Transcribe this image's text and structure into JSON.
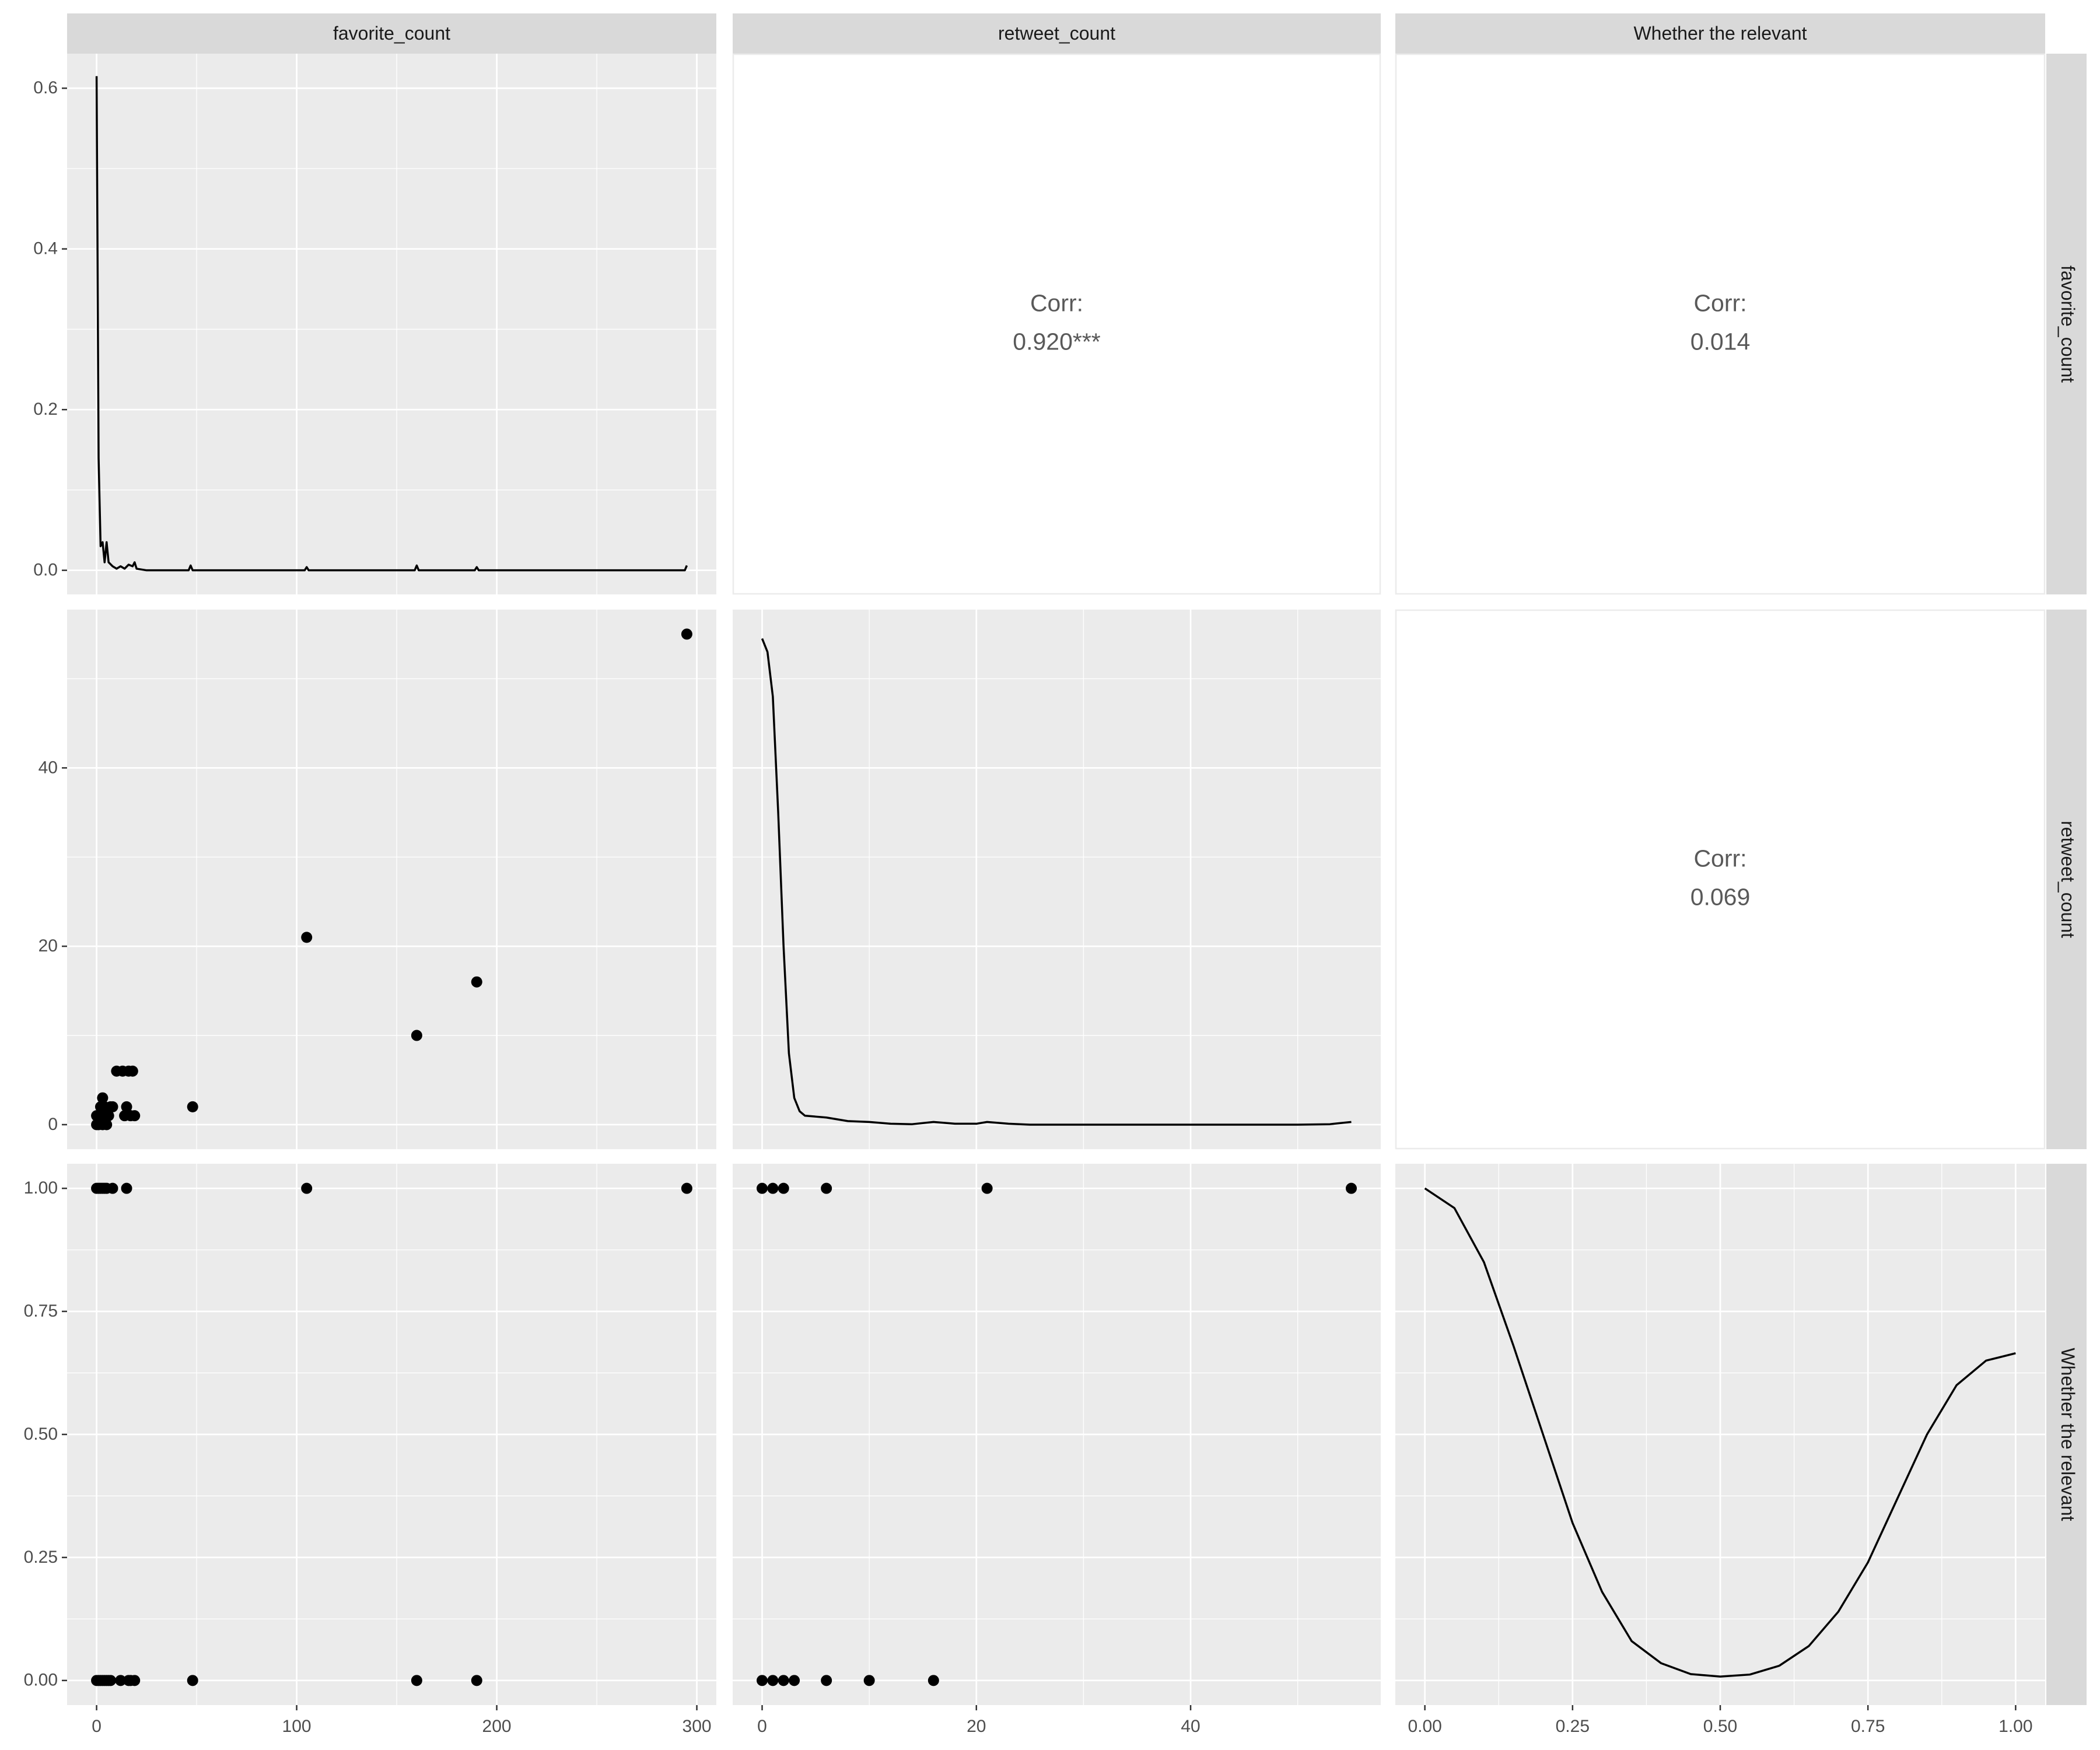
{
  "chart_data": {
    "type": "pairs",
    "color": "#000000",
    "variables": [
      "favorite_count",
      "retweet_count",
      "Whether the relevant"
    ],
    "columns": [
      {
        "xlim": [
          -14.75,
          309.75
        ],
        "xticks": [
          0,
          100,
          200,
          300
        ]
      },
      {
        "xlim": [
          -2.75,
          57.75
        ],
        "xticks": [
          0,
          20,
          40
        ]
      },
      {
        "xlim": [
          -0.05,
          1.05
        ],
        "xticks": [
          {
            "value": 0,
            "label": "0.00"
          },
          0.25,
          {
            "value": 0.5,
            "label": "0.50"
          },
          0.75,
          {
            "value": 1,
            "label": "1.00"
          }
        ]
      }
    ],
    "rows": [
      {
        "ylim": [
          -0.03,
          0.643
        ],
        "yticks": [
          {
            "value": 0,
            "label": "0.0"
          },
          0.2,
          0.4,
          0.6
        ]
      },
      {
        "ylim": [
          -2.75,
          57.75
        ],
        "yticks": [
          0,
          20,
          40
        ]
      },
      {
        "ylim": [
          -0.05,
          1.05
        ],
        "yticks": [
          {
            "value": 0,
            "label": "0.00"
          },
          0.25,
          {
            "value": 0.5,
            "label": "0.50"
          },
          0.75,
          {
            "value": 1,
            "label": "1.00"
          }
        ]
      }
    ],
    "panels": [
      [
        {
          "type": "line",
          "x": [
            0,
            1,
            2,
            3,
            4,
            5,
            6,
            8,
            10,
            12,
            14,
            16,
            18,
            19,
            20,
            25,
            46,
            47,
            48,
            60,
            104,
            105,
            106,
            120,
            159,
            160,
            161,
            175,
            189,
            190,
            191,
            200,
            294,
            295
          ],
          "values": [
            0.615,
            0.14,
            0.03,
            0.035,
            0.01,
            0.035,
            0.01,
            0.005,
            0.002,
            0.005,
            0.002,
            0.007,
            0.005,
            0.01,
            0.002,
            0,
            0,
            0.006,
            0,
            0,
            0,
            0.004,
            0,
            0,
            0,
            0.006,
            0,
            0,
            0,
            0.004,
            0,
            0,
            0,
            0.006
          ]
        },
        {
          "type": "text",
          "text": [
            "Corr:",
            "0.920***"
          ]
        },
        {
          "type": "text",
          "text": [
            "Corr:",
            "0.014"
          ]
        }
      ],
      [
        {
          "type": "scatter",
          "x": [
            0,
            0,
            1,
            2,
            2,
            3,
            3,
            4,
            4,
            5,
            6,
            7,
            8,
            10,
            13,
            14,
            15,
            16,
            17,
            18,
            19,
            48,
            105,
            160,
            190,
            295
          ],
          "values": [
            0,
            1,
            0,
            1,
            2,
            0,
            3,
            1,
            2,
            0,
            1,
            2,
            2,
            6,
            6,
            1,
            2,
            6,
            1,
            6,
            1,
            2,
            21,
            10,
            16,
            55
          ]
        },
        {
          "type": "line",
          "x": [
            0,
            0.5,
            1,
            1.5,
            2,
            2.5,
            3,
            3.5,
            4,
            5,
            6,
            8,
            10,
            12,
            14,
            16,
            18,
            20,
            21,
            23,
            25,
            50,
            53,
            55
          ],
          "values": [
            54.5,
            53,
            48,
            35,
            20,
            8,
            3,
            1.5,
            1,
            0.9,
            0.8,
            0.4,
            0.3,
            0.1,
            0.05,
            0.3,
            0.1,
            0.1,
            0.3,
            0.1,
            0,
            0,
            0.05,
            0.3
          ]
        },
        {
          "type": "text",
          "text": [
            "Corr:",
            "0.069"
          ]
        }
      ],
      [
        {
          "type": "scatter",
          "x": [
            0,
            1,
            2,
            3,
            4,
            5,
            8,
            15,
            105,
            295,
            0,
            1,
            2,
            3,
            4,
            5,
            6,
            7,
            12,
            16,
            17,
            19,
            48,
            160,
            190
          ],
          "values": [
            1,
            1,
            1,
            1,
            1,
            1,
            1,
            1,
            1,
            1,
            0,
            0,
            0,
            0,
            0,
            0,
            0,
            0,
            0,
            0,
            0,
            0,
            0,
            0,
            0
          ]
        },
        {
          "type": "scatter",
          "x": [
            0,
            1,
            2,
            6,
            21,
            55,
            0,
            1,
            2,
            3,
            6,
            10,
            16
          ],
          "values": [
            1,
            1,
            1,
            1,
            1,
            1,
            0,
            0,
            0,
            0,
            0,
            0,
            0
          ]
        },
        {
          "type": "line",
          "x": [
            0,
            0.05,
            0.1,
            0.15,
            0.2,
            0.25,
            0.3,
            0.35,
            0.4,
            0.45,
            0.5,
            0.55,
            0.6,
            0.65,
            0.7,
            0.75,
            0.8,
            0.85,
            0.9,
            0.95,
            1
          ],
          "values": [
            1,
            0.96,
            0.85,
            0.68,
            0.5,
            0.32,
            0.18,
            0.08,
            0.035,
            0.013,
            0.008,
            0.012,
            0.03,
            0.07,
            0.14,
            0.24,
            0.37,
            0.5,
            0.6,
            0.65,
            0.665
          ]
        }
      ]
    ]
  }
}
